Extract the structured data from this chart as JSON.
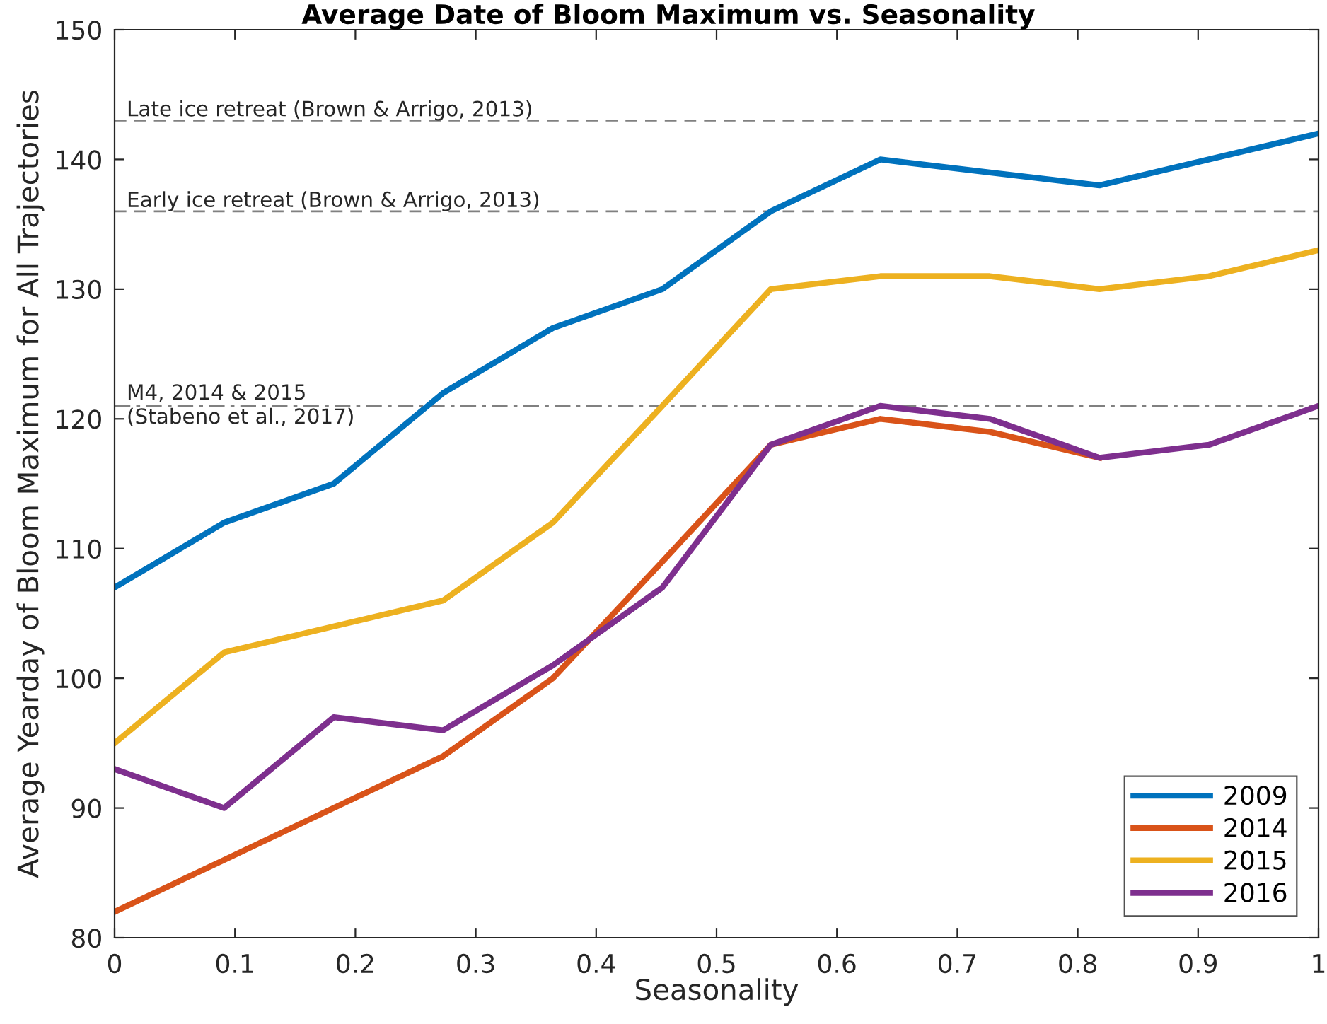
{
  "chart_data": {
    "type": "line",
    "title": "Average Date of Bloom Maximum vs. Seasonality",
    "xlabel": "Seasonality",
    "ylabel": "Average Yearday of Bloom Maximum for All Trajectories",
    "x": [
      0,
      0.091,
      0.182,
      0.273,
      0.364,
      0.455,
      0.545,
      0.636,
      0.727,
      0.818,
      0.909,
      1
    ],
    "series": [
      {
        "name": "2009",
        "color": "#0072bd",
        "values": [
          107,
          112,
          115,
          122,
          127,
          130,
          136,
          140,
          139,
          138,
          140,
          142
        ]
      },
      {
        "name": "2014",
        "color": "#d95319",
        "values": [
          82,
          86,
          90,
          94,
          100,
          109,
          118,
          120,
          119,
          117,
          null,
          null
        ]
      },
      {
        "name": "2015",
        "color": "#edb120",
        "values": [
          95,
          102,
          104,
          106,
          112,
          121,
          130,
          131,
          131,
          130,
          131,
          133
        ]
      },
      {
        "name": "2016",
        "color": "#7e2f8e",
        "values": [
          93,
          90,
          97,
          96,
          101,
          107,
          118,
          121,
          120,
          117,
          118,
          121
        ]
      }
    ],
    "xlim": [
      0,
      1
    ],
    "ylim": [
      80,
      150
    ],
    "xticks": [
      0,
      0.1,
      0.2,
      0.3,
      0.4,
      0.5,
      0.6,
      0.7,
      0.8,
      0.9,
      1
    ],
    "yticks": [
      80,
      90,
      100,
      110,
      120,
      130,
      140,
      150
    ],
    "ref_lines": [
      {
        "axis": "y",
        "value": 143,
        "label": "Late ice retreat (Brown & Arrigo, 2013)",
        "color": "#808080",
        "line_style": "dashed"
      },
      {
        "axis": "y",
        "value": 136,
        "label": "Early ice retreat (Brown & Arrigo, 2013)",
        "color": "#808080",
        "line_style": "dashed"
      },
      {
        "axis": "y",
        "value": 121,
        "label": "M4, 2014 & 2015\n(Stabeno et al., 2017)",
        "color": "#808080",
        "line_style": "dashdot"
      }
    ],
    "legend": "bottom right",
    "line_style": "solid",
    "marker": "none",
    "grid": false
  }
}
